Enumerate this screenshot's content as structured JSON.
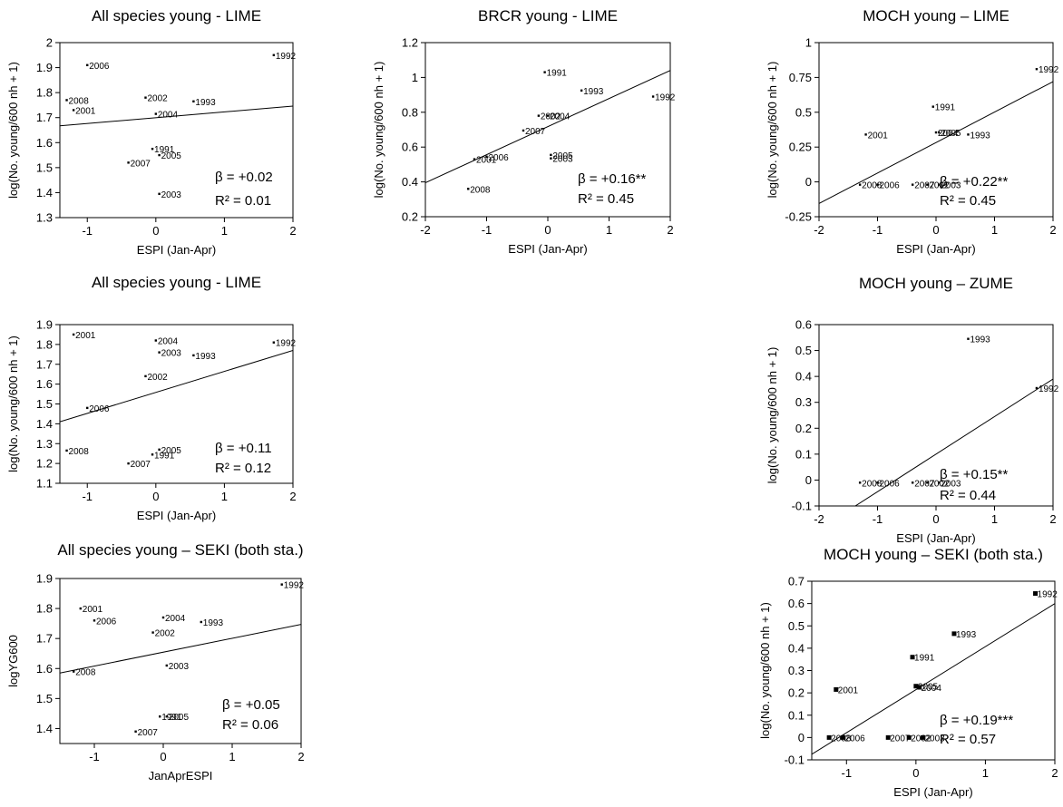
{
  "chart_data": [
    {
      "type": "scatter",
      "title": "All species young - LIME",
      "xlabel": "ESPI (Jan-Apr)",
      "ylabel": "log(No. young/600 nh + 1)",
      "xlim": [
        -1.4,
        2
      ],
      "ylim": [
        1.3,
        2
      ],
      "xticks": [
        -1,
        0,
        1,
        2
      ],
      "yticks": [
        1.3,
        1.4,
        1.5,
        1.6,
        1.7,
        1.8,
        1.9,
        2
      ],
      "xtick_labels": [
        "-1",
        "0",
        "1",
        "2"
      ],
      "ytick_labels": [
        "1.3",
        "1.4",
        "1.5",
        "1.6",
        "1.7",
        "1.8",
        "1.9",
        "2"
      ],
      "points": [
        {
          "label": "2006",
          "x": -1.0,
          "y": 1.91
        },
        {
          "label": "2008",
          "x": -1.3,
          "y": 1.77
        },
        {
          "label": "2001",
          "x": -1.2,
          "y": 1.73
        },
        {
          "label": "2002",
          "x": -0.15,
          "y": 1.78
        },
        {
          "label": "2004",
          "x": 0.0,
          "y": 1.715
        },
        {
          "label": "1993",
          "x": 0.55,
          "y": 1.765
        },
        {
          "label": "1992",
          "x": 1.72,
          "y": 1.95
        },
        {
          "label": "1991",
          "x": -0.05,
          "y": 1.575
        },
        {
          "label": "2005",
          "x": 0.05,
          "y": 1.55
        },
        {
          "label": "2007",
          "x": -0.4,
          "y": 1.52
        },
        {
          "label": "2003",
          "x": 0.05,
          "y": 1.395
        }
      ],
      "trend": {
        "x1": -1.4,
        "y1": 1.667,
        "x2": 2,
        "y2": 1.746
      },
      "beta": "β = +0.02",
      "r2_label": "R² = 0.01"
    },
    {
      "type": "scatter",
      "title": "BRCR young - LIME",
      "xlabel": "ESPI (Jan-Apr)",
      "ylabel": "log(No. young/600 nh + 1)",
      "xlim": [
        -2,
        2
      ],
      "ylim": [
        0.2,
        1.2
      ],
      "xticks": [
        -2,
        -1,
        0,
        1,
        2
      ],
      "yticks": [
        0.2,
        0.4,
        0.6,
        0.8,
        1,
        1.2
      ],
      "xtick_labels": [
        "-2",
        "-1",
        "0",
        "1",
        "2"
      ],
      "ytick_labels": [
        "0.2",
        "0.4",
        "0.6",
        "0.8",
        "1",
        "1.2"
      ],
      "points": [
        {
          "label": "1991",
          "x": -0.05,
          "y": 1.03
        },
        {
          "label": "1993",
          "x": 0.55,
          "y": 0.925
        },
        {
          "label": "1992",
          "x": 1.72,
          "y": 0.89
        },
        {
          "label": "2002",
          "x": -0.15,
          "y": 0.78
        },
        {
          "label": "2004",
          "x": 0.0,
          "y": 0.78
        },
        {
          "label": "2007",
          "x": -0.4,
          "y": 0.695
        },
        {
          "label": "2006",
          "x": -1.0,
          "y": 0.545
        },
        {
          "label": "2001",
          "x": -1.2,
          "y": 0.53
        },
        {
          "label": "2005",
          "x": 0.05,
          "y": 0.555
        },
        {
          "label": "2003",
          "x": 0.05,
          "y": 0.535
        },
        {
          "label": "2008",
          "x": -1.3,
          "y": 0.36
        }
      ],
      "trend": {
        "x1": -2,
        "y1": 0.395,
        "x2": 2,
        "y2": 1.04
      },
      "beta": "β = +0.16**",
      "r2_label": "R² = 0.45"
    },
    {
      "type": "scatter",
      "title": "MOCH young – LIME",
      "xlabel": "ESPI (Jan-Apr)",
      "ylabel": "log(No. young/600 nh + 1)",
      "xlim": [
        -2,
        2
      ],
      "ylim": [
        -0.25,
        1
      ],
      "xticks": [
        -2,
        -1,
        0,
        1,
        2
      ],
      "yticks": [
        -0.25,
        0,
        0.25,
        0.5,
        0.75,
        1
      ],
      "xtick_labels": [
        "-2",
        "-1",
        "0",
        "1",
        "2"
      ],
      "ytick_labels": [
        "-0.25",
        "0",
        "0.25",
        "0.5",
        "0.75",
        "1"
      ],
      "points": [
        {
          "label": "1992",
          "x": 1.72,
          "y": 0.81
        },
        {
          "label": "1991",
          "x": -0.05,
          "y": 0.54
        },
        {
          "label": "2001",
          "x": -1.2,
          "y": 0.34
        },
        {
          "label": "2004",
          "x": 0.0,
          "y": 0.355
        },
        {
          "label": "2005",
          "x": 0.05,
          "y": 0.355
        },
        {
          "label": "1993",
          "x": 0.55,
          "y": 0.34
        },
        {
          "label": "2008",
          "x": -1.3,
          "y": -0.02
        },
        {
          "label": "2006",
          "x": -1.0,
          "y": -0.02
        },
        {
          "label": "2007",
          "x": -0.4,
          "y": -0.02
        },
        {
          "label": "2002",
          "x": -0.15,
          "y": -0.02
        },
        {
          "label": "2003",
          "x": 0.05,
          "y": -0.02
        }
      ],
      "trend": {
        "x1": -2,
        "y1": -0.155,
        "x2": 2,
        "y2": 0.72
      },
      "beta": "β = +0.22**",
      "r2_label": "R² = 0.45"
    },
    {
      "type": "scatter",
      "title": "All species young - LIME",
      "xlabel": "ESPI (Jan-Apr)",
      "ylabel": "log(No. young/600 nh + 1)",
      "xlim": [
        -1.4,
        2
      ],
      "ylim": [
        1.1,
        1.9
      ],
      "xticks": [
        -1,
        0,
        1,
        2
      ],
      "yticks": [
        1.1,
        1.2,
        1.3,
        1.4,
        1.5,
        1.6,
        1.7,
        1.8,
        1.9
      ],
      "xtick_labels": [
        "-1",
        "0",
        "1",
        "2"
      ],
      "ytick_labels": [
        "1.1",
        "1.2",
        "1.3",
        "1.4",
        "1.5",
        "1.6",
        "1.7",
        "1.8",
        "1.9"
      ],
      "points": [
        {
          "label": "2001",
          "x": -1.2,
          "y": 1.85
        },
        {
          "label": "2004",
          "x": 0.0,
          "y": 1.82
        },
        {
          "label": "1992",
          "x": 1.72,
          "y": 1.81
        },
        {
          "label": "2003",
          "x": 0.05,
          "y": 1.76
        },
        {
          "label": "1993",
          "x": 0.55,
          "y": 1.745
        },
        {
          "label": "2002",
          "x": -0.15,
          "y": 1.64
        },
        {
          "label": "2006",
          "x": -1.0,
          "y": 1.48
        },
        {
          "label": "2008",
          "x": -1.3,
          "y": 1.265
        },
        {
          "label": "2005",
          "x": 0.05,
          "y": 1.27
        },
        {
          "label": "1991",
          "x": -0.05,
          "y": 1.245
        },
        {
          "label": "2007",
          "x": -0.4,
          "y": 1.2
        }
      ],
      "trend": {
        "x1": -1.4,
        "y1": 1.41,
        "x2": 2,
        "y2": 1.77
      },
      "beta": "β = +0.11",
      "r2_label": "R² = 0.12"
    },
    {
      "type": "scatter",
      "title": "MOCH young – ZUME",
      "xlabel": "ESPI (Jan-Apr)",
      "ylabel": "log(No. young/600 nh + 1)",
      "xlim": [
        -2,
        2
      ],
      "ylim": [
        -0.1,
        0.6
      ],
      "xticks": [
        -2,
        -1,
        0,
        1,
        2
      ],
      "yticks": [
        -0.1,
        0,
        0.1,
        0.2,
        0.3,
        0.4,
        0.5,
        0.6
      ],
      "xtick_labels": [
        "-2",
        "-1",
        "0",
        "1",
        "2"
      ],
      "ytick_labels": [
        "-0.1",
        "0",
        "0.1",
        "0.2",
        "0.3",
        "0.4",
        "0.5",
        "0.6"
      ],
      "points": [
        {
          "label": "1993",
          "x": 0.55,
          "y": 0.545
        },
        {
          "label": "1992",
          "x": 1.72,
          "y": 0.355
        },
        {
          "label": "2008",
          "x": -1.3,
          "y": -0.01
        },
        {
          "label": "2006",
          "x": -1.0,
          "y": -0.01
        },
        {
          "label": "2007",
          "x": -0.4,
          "y": -0.01
        },
        {
          "label": "2002",
          "x": -0.15,
          "y": -0.01
        },
        {
          "label": "2003",
          "x": 0.05,
          "y": -0.01
        }
      ],
      "trend": {
        "x1": -1.38,
        "y1": -0.1,
        "x2": 2,
        "y2": 0.39
      },
      "beta": "β = +0.15**",
      "r2_label": "R² = 0.44"
    },
    {
      "type": "scatter",
      "title": "All species young – SEKI (both sta.)",
      "xlabel": "JanAprESPI",
      "ylabel": "logYG600",
      "xlim": [
        -1.5,
        2
      ],
      "ylim": [
        1.35,
        1.9
      ],
      "xticks": [
        -1,
        0,
        1,
        2
      ],
      "yticks": [
        1.4,
        1.5,
        1.6,
        1.7,
        1.8,
        1.9
      ],
      "xtick_labels": [
        "-1",
        "0",
        "1",
        "2"
      ],
      "ytick_labels": [
        "1.4",
        "1.5",
        "1.6",
        "1.7",
        "1.8",
        "1.9"
      ],
      "points": [
        {
          "label": "1992",
          "x": 1.72,
          "y": 1.88
        },
        {
          "label": "2001",
          "x": -1.2,
          "y": 1.8
        },
        {
          "label": "2006",
          "x": -1.0,
          "y": 1.76
        },
        {
          "label": "2004",
          "x": 0.0,
          "y": 1.77
        },
        {
          "label": "1993",
          "x": 0.55,
          "y": 1.755
        },
        {
          "label": "2002",
          "x": -0.15,
          "y": 1.72
        },
        {
          "label": "2003",
          "x": 0.05,
          "y": 1.61
        },
        {
          "label": "2008",
          "x": -1.3,
          "y": 1.59
        },
        {
          "label": "1991",
          "x": -0.05,
          "y": 1.44
        },
        {
          "label": "2005",
          "x": 0.05,
          "y": 1.44
        },
        {
          "label": "2007",
          "x": -0.4,
          "y": 1.39
        }
      ],
      "trend": {
        "x1": -1.5,
        "y1": 1.585,
        "x2": 2,
        "y2": 1.747
      },
      "beta": "β = +0.05",
      "r2_label": "R² = 0.06"
    },
    {
      "type": "scatter",
      "title": "MOCH young – SEKI (both sta.)",
      "xlabel": "ESPI (Jan-Apr)",
      "ylabel": "log(No. young/600 nh + 1)",
      "xlim": [
        -1.5,
        2
      ],
      "ylim": [
        -0.1,
        0.7
      ],
      "xticks": [
        -1,
        0,
        1,
        2
      ],
      "yticks": [
        -0.1,
        0,
        0.1,
        0.2,
        0.3,
        0.4,
        0.5,
        0.6,
        0.7
      ],
      "xtick_labels": [
        "-1",
        "0",
        "1",
        "2"
      ],
      "ytick_labels": [
        "-0.1",
        "0",
        "0.1",
        "0.2",
        "0.3",
        "0.4",
        "0.5",
        "0.6",
        "0.7"
      ],
      "points": [
        {
          "label": "1992",
          "x": 1.72,
          "y": 0.645
        },
        {
          "label": "1993",
          "x": 0.55,
          "y": 0.465
        },
        {
          "label": "1991",
          "x": -0.05,
          "y": 0.36
        },
        {
          "label": "2005",
          "x": 0.0,
          "y": 0.23
        },
        {
          "label": "2004",
          "x": 0.05,
          "y": 0.225
        },
        {
          "label": "2001",
          "x": -1.15,
          "y": 0.215
        },
        {
          "label": "2008",
          "x": -1.25,
          "y": 0.0
        },
        {
          "label": "2006",
          "x": -1.05,
          "y": 0.0
        },
        {
          "label": "2007",
          "x": -0.4,
          "y": 0.0
        },
        {
          "label": "2002",
          "x": -0.1,
          "y": 0.0
        },
        {
          "label": "2003",
          "x": 0.1,
          "y": 0.0
        }
      ],
      "trend": {
        "x1": -1.5,
        "y1": -0.075,
        "x2": 2,
        "y2": 0.6
      },
      "beta": "β = +0.19***",
      "r2_label": "R² = 0.57"
    }
  ]
}
